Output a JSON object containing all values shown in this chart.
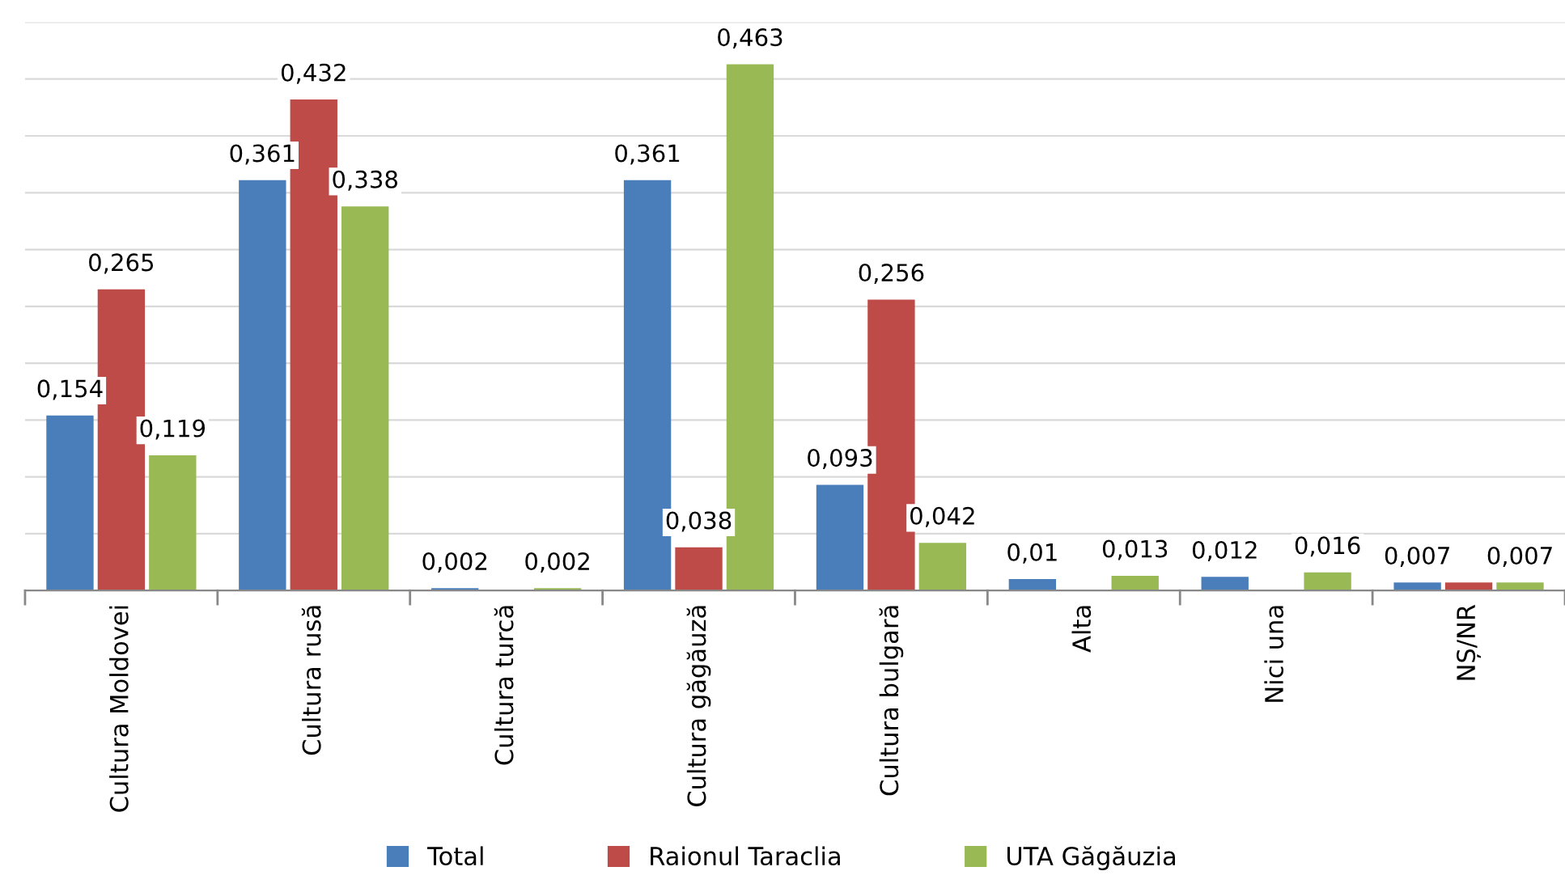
{
  "chart_data": {
    "type": "bar",
    "categories": [
      "Cultura Moldovei",
      "Cultura rusă",
      "Cultura turcă",
      "Cultura găgăuză",
      "Cultura bulgară",
      "Alta",
      "Nici una",
      "NȘ/NR"
    ],
    "series": [
      {
        "name": "Total",
        "color": "#4a7ebb",
        "values": [
          0.154,
          0.361,
          0.002,
          0.361,
          0.093,
          0.01,
          0.012,
          0.007
        ],
        "value_labels": [
          "0,154",
          "0,361",
          "0,002",
          "0,361",
          "0,093",
          "0,01",
          "0,012",
          "0,007"
        ]
      },
      {
        "name": "Raionul Taraclia",
        "color": "#be4b48",
        "values": [
          0.265,
          0.432,
          null,
          0.038,
          0.256,
          null,
          null,
          0.007
        ],
        "value_labels": [
          "0,265",
          "0,432",
          null,
          "0,038",
          "0,256",
          null,
          null,
          null
        ]
      },
      {
        "name": "UTA Găgăuzia",
        "color": "#98b954",
        "values": [
          0.119,
          0.338,
          0.002,
          0.463,
          0.042,
          0.013,
          0.016,
          0.007
        ],
        "value_labels": [
          "0,119",
          "0,338",
          "0,002",
          "0,463",
          "0,042",
          "0,013",
          "0,016",
          "0,007"
        ]
      }
    ],
    "ylim": [
      0,
      0.5
    ],
    "yticks": [
      {
        "value": 0,
        "label": null
      },
      {
        "value": 0.05,
        "label": null
      },
      {
        "value": 0.1,
        "label": null
      },
      {
        "value": 0.15,
        "label": null
      },
      {
        "value": 0.2,
        "label": null
      },
      {
        "value": 0.25,
        "label": null
      },
      {
        "value": 0.3,
        "label": null
      },
      {
        "value": 0.35,
        "label": null
      },
      {
        "value": 0.4,
        "label": null
      },
      {
        "value": 0.45,
        "label": null
      },
      {
        "value": 0.5,
        "label": null
      }
    ],
    "tick_labels": "x",
    "grid": "y",
    "legend": "bottom"
  }
}
